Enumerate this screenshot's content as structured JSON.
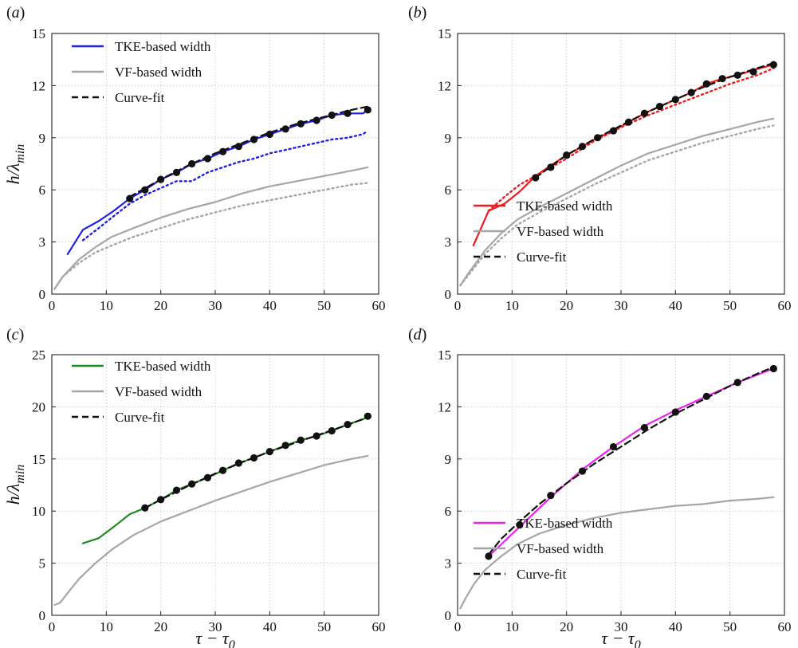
{
  "figure": {
    "x_axis_label": "τ − τ0",
    "y_axis_label": "h/λmin"
  },
  "chart_data": [
    {
      "type": "line",
      "panel_label": "(a)",
      "xlim": [
        0,
        60
      ],
      "ylim": [
        0,
        15
      ],
      "xticks": [
        0,
        10,
        20,
        30,
        40,
        50,
        60
      ],
      "yticks": [
        0,
        3,
        6,
        9,
        12,
        15
      ],
      "grid": true,
      "legend_position": "top-left",
      "colors": {
        "tke": "#1f1fe6",
        "vf": "#a6a6a6",
        "fit": "#111111"
      },
      "series": [
        {
          "name": "TKE-based width",
          "style": "solid",
          "color": "#1f1fe6",
          "x": [
            2.9,
            5.7,
            8.6,
            11.4,
            14.3,
            17.1,
            20,
            22.9,
            25.7,
            28.6,
            31.4,
            34.3,
            37.1,
            40,
            42.9,
            45.7,
            48.6,
            51.4,
            54.3,
            57.1,
            58
          ],
          "y": [
            2.3,
            3.7,
            4.2,
            4.8,
            5.5,
            6.0,
            6.6,
            7.0,
            7.5,
            7.8,
            8.2,
            8.5,
            8.9,
            9.2,
            9.5,
            9.8,
            10.0,
            10.3,
            10.4,
            10.4,
            10.6
          ]
        },
        {
          "name": "",
          "style": "dotted",
          "color": "#1f1fe6",
          "x": [
            5.7,
            8.6,
            11.4,
            14.3,
            17.1,
            20,
            22.9,
            25.7,
            28.6,
            31.4,
            34.3,
            37.1,
            40,
            42.9,
            45.7,
            48.6,
            51.4,
            54.3,
            57.1,
            58
          ],
          "y": [
            3.1,
            3.8,
            4.5,
            5.2,
            5.7,
            6.1,
            6.5,
            6.5,
            7.0,
            7.3,
            7.6,
            7.8,
            8.1,
            8.3,
            8.5,
            8.7,
            8.9,
            9.0,
            9.2,
            9.4
          ]
        },
        {
          "name": "VF-based width",
          "style": "solid",
          "color": "#a6a6a6",
          "x": [
            0.5,
            2,
            5,
            8,
            11,
            15,
            20,
            25,
            30,
            35,
            40,
            45,
            50,
            55,
            58
          ],
          "y": [
            0.3,
            1.0,
            2.0,
            2.7,
            3.3,
            3.8,
            4.4,
            4.9,
            5.3,
            5.8,
            6.2,
            6.5,
            6.8,
            7.1,
            7.3
          ]
        },
        {
          "name": "",
          "style": "dotted",
          "color": "#a6a6a6",
          "x": [
            0.5,
            2,
            5,
            8,
            11,
            15,
            20,
            25,
            30,
            35,
            40,
            45,
            50,
            55,
            58
          ],
          "y": [
            0.3,
            1.0,
            1.8,
            2.4,
            2.8,
            3.3,
            3.8,
            4.3,
            4.7,
            5.1,
            5.4,
            5.7,
            6.0,
            6.3,
            6.4
          ]
        },
        {
          "name": "Curve-fit",
          "style": "dashed",
          "color": "#111111",
          "x": [
            14.3,
            20,
            25,
            30,
            35,
            40,
            45,
            50,
            55,
            58
          ],
          "y": [
            5.6,
            6.6,
            7.4,
            8.1,
            8.7,
            9.3,
            9.8,
            10.2,
            10.6,
            10.8
          ]
        }
      ],
      "markers": {
        "x": [
          14.3,
          17.1,
          20,
          22.9,
          25.7,
          28.6,
          31.4,
          34.3,
          37.1,
          40,
          42.9,
          45.7,
          48.6,
          51.4,
          54.3,
          58
        ],
        "y": [
          5.5,
          6.0,
          6.6,
          7.0,
          7.5,
          7.8,
          8.2,
          8.5,
          8.9,
          9.2,
          9.5,
          9.8,
          10.0,
          10.3,
          10.4,
          10.6
        ]
      }
    },
    {
      "type": "line",
      "panel_label": "(b)",
      "xlim": [
        0,
        60
      ],
      "ylim": [
        0,
        15
      ],
      "xticks": [
        0,
        10,
        20,
        30,
        40,
        50,
        60
      ],
      "yticks": [
        0,
        3,
        6,
        9,
        12,
        15
      ],
      "grid": true,
      "legend_position": "bottom-right",
      "colors": {
        "tke": "#ee1c1c",
        "vf": "#a6a6a6",
        "fit": "#111111"
      },
      "series": [
        {
          "name": "TKE-based width",
          "style": "solid",
          "color": "#ee1c1c",
          "x": [
            2.9,
            5.7,
            8.6,
            11.4,
            14.3,
            17.1,
            20,
            22.9,
            25.7,
            28.6,
            31.4,
            34.3,
            37.1,
            40,
            42.9,
            45.7,
            48.6,
            51.4,
            54.3,
            58
          ],
          "y": [
            2.8,
            4.8,
            5.2,
            5.9,
            6.8,
            7.4,
            8.0,
            8.5,
            9.0,
            9.4,
            9.9,
            10.4,
            10.8,
            11.2,
            11.6,
            12.1,
            12.4,
            12.6,
            12.9,
            13.2
          ]
        },
        {
          "name": "",
          "style": "dotted",
          "color": "#ee1c1c",
          "x": [
            5.7,
            8.6,
            11.4,
            14.3,
            17.1,
            20,
            25,
            30,
            35,
            40,
            45,
            50,
            55,
            58
          ],
          "y": [
            4.8,
            5.6,
            6.3,
            6.8,
            7.3,
            7.8,
            8.8,
            9.6,
            10.3,
            10.9,
            11.5,
            12.1,
            12.6,
            13.0
          ]
        },
        {
          "name": "VF-based width",
          "style": "solid",
          "color": "#a6a6a6",
          "x": [
            0.5,
            2,
            5,
            8,
            11,
            15,
            20,
            25,
            30,
            35,
            40,
            45,
            50,
            55,
            58
          ],
          "y": [
            0.5,
            1.2,
            2.5,
            3.5,
            4.3,
            5.0,
            5.8,
            6.6,
            7.4,
            8.1,
            8.6,
            9.1,
            9.5,
            9.9,
            10.1
          ]
        },
        {
          "name": "",
          "style": "dotted",
          "color": "#a6a6a6",
          "x": [
            0.5,
            2,
            5,
            8,
            11,
            15,
            20,
            25,
            30,
            35,
            40,
            45,
            50,
            55,
            58
          ],
          "y": [
            0.5,
            1.1,
            2.3,
            3.2,
            4.0,
            4.7,
            5.5,
            6.3,
            7.0,
            7.7,
            8.2,
            8.7,
            9.1,
            9.5,
            9.7
          ]
        },
        {
          "name": "Curve-fit",
          "style": "dashed",
          "color": "#111111",
          "x": [
            14.3,
            20,
            25,
            30,
            35,
            40,
            45,
            50,
            55,
            58
          ],
          "y": [
            6.7,
            8.0,
            8.9,
            9.7,
            10.5,
            11.2,
            11.9,
            12.5,
            13.0,
            13.3
          ]
        }
      ],
      "markers": {
        "x": [
          14.3,
          17.1,
          20,
          22.9,
          25.7,
          28.6,
          31.4,
          34.3,
          37.1,
          40,
          42.9,
          45.7,
          48.6,
          51.4,
          54.3,
          58
        ],
        "y": [
          6.7,
          7.3,
          8.0,
          8.5,
          9.0,
          9.4,
          9.9,
          10.4,
          10.8,
          11.2,
          11.6,
          12.1,
          12.4,
          12.6,
          12.8,
          13.2
        ]
      }
    },
    {
      "type": "line",
      "panel_label": "(c)",
      "xlim": [
        0,
        60
      ],
      "ylim": [
        0,
        25
      ],
      "xticks": [
        0,
        10,
        20,
        30,
        40,
        50,
        60
      ],
      "yticks": [
        0,
        5,
        10,
        15,
        20,
        25
      ],
      "grid": true,
      "legend_position": "top-left",
      "colors": {
        "tke": "#1e8c1e",
        "vf": "#a6a6a6",
        "fit": "#111111"
      },
      "series": [
        {
          "name": "TKE-based width",
          "style": "solid",
          "color": "#1e8c1e",
          "x": [
            5.7,
            8.6,
            11.4,
            14.3,
            17.1,
            20,
            22.9,
            25.7,
            28.6,
            31.4,
            34.3,
            37.1,
            40,
            42.9,
            45.7,
            48.6,
            51.4,
            54.3,
            57.1,
            58
          ],
          "y": [
            6.9,
            7.4,
            8.5,
            9.7,
            10.3,
            11.1,
            12.0,
            12.6,
            13.2,
            13.9,
            14.6,
            15.1,
            15.7,
            16.3,
            16.8,
            17.2,
            17.7,
            18.3,
            18.8,
            19.1
          ]
        },
        {
          "name": "VF-based width",
          "style": "solid",
          "color": "#a6a6a6",
          "x": [
            0.5,
            1.5,
            3,
            5,
            8,
            11,
            15,
            20,
            25,
            30,
            35,
            40,
            45,
            50,
            55,
            58
          ],
          "y": [
            1.0,
            1.2,
            2.2,
            3.5,
            5.0,
            6.3,
            7.7,
            9.0,
            10.0,
            11.0,
            11.9,
            12.8,
            13.6,
            14.4,
            15.0,
            15.3
          ]
        },
        {
          "name": "Curve-fit",
          "style": "dashed",
          "color": "#111111",
          "x": [
            17.1,
            20,
            25,
            30,
            35,
            40,
            45,
            50,
            55,
            58
          ],
          "y": [
            10.3,
            11.1,
            12.4,
            13.6,
            14.7,
            15.7,
            16.6,
            17.5,
            18.4,
            19.0
          ]
        }
      ],
      "markers": {
        "x": [
          17.1,
          20,
          22.9,
          25.7,
          28.6,
          31.4,
          34.3,
          37.1,
          40,
          42.9,
          45.7,
          48.6,
          51.4,
          54.3,
          58
        ],
        "y": [
          10.3,
          11.1,
          12.0,
          12.6,
          13.2,
          13.9,
          14.6,
          15.1,
          15.7,
          16.3,
          16.8,
          17.2,
          17.7,
          18.3,
          19.1
        ]
      }
    },
    {
      "type": "line",
      "panel_label": "(d)",
      "xlim": [
        0,
        60
      ],
      "ylim": [
        0,
        15
      ],
      "xticks": [
        0,
        10,
        20,
        30,
        40,
        50,
        60
      ],
      "yticks": [
        0,
        3,
        6,
        9,
        12,
        15
      ],
      "grid": true,
      "legend_position": "bottom-right",
      "colors": {
        "tke": "#ee22ee",
        "vf": "#a6a6a6",
        "fit": "#111111"
      },
      "series": [
        {
          "name": "TKE-based width",
          "style": "solid",
          "color": "#ee22ee",
          "x": [
            5.7,
            11.4,
            17.1,
            22.9,
            28.6,
            34.3,
            40,
            45.7,
            51.4,
            58
          ],
          "y": [
            3.4,
            5.1,
            6.8,
            8.4,
            9.7,
            10.9,
            11.8,
            12.6,
            13.4,
            14.2
          ]
        },
        {
          "name": "VF-based width",
          "style": "solid",
          "color": "#a6a6a6",
          "x": [
            0.5,
            1.5,
            3,
            5,
            8,
            11,
            15,
            20,
            25,
            30,
            35,
            40,
            45,
            50,
            55,
            58
          ],
          "y": [
            0.4,
            1.0,
            1.8,
            2.6,
            3.4,
            4.1,
            4.7,
            5.2,
            5.6,
            5.9,
            6.1,
            6.3,
            6.4,
            6.6,
            6.7,
            6.8
          ]
        },
        {
          "name": "Curve-fit",
          "style": "dashed",
          "color": "#111111",
          "x": [
            5.7,
            8,
            11.4,
            15,
            20,
            25,
            30,
            35,
            40,
            45,
            50,
            55,
            58
          ],
          "y": [
            3.5,
            4.4,
            5.4,
            6.4,
            7.6,
            8.7,
            9.7,
            10.7,
            11.6,
            12.4,
            13.2,
            13.9,
            14.3
          ]
        }
      ],
      "markers": {
        "x": [
          5.7,
          11.4,
          17.1,
          22.9,
          28.6,
          34.3,
          40,
          45.7,
          51.4,
          58
        ],
        "y": [
          3.4,
          5.2,
          6.9,
          8.3,
          9.7,
          10.8,
          11.7,
          12.6,
          13.4,
          14.2
        ]
      }
    }
  ]
}
